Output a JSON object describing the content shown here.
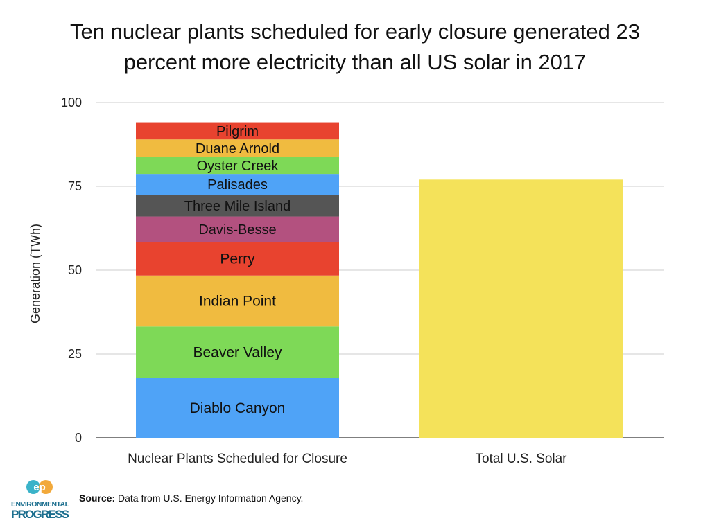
{
  "title": {
    "line1": "Ten nuclear plants scheduled for early closure generated 23",
    "line2": "percent more electricity than all US solar in 2017"
  },
  "chart_data": {
    "type": "bar",
    "ylabel": "Generation (TWh)",
    "ylim": [
      0,
      100
    ],
    "yticks": [
      0,
      25,
      50,
      75,
      100
    ],
    "grid": true,
    "categories": [
      "Nuclear Plants Scheduled for Closure",
      "Total U.S. Solar"
    ],
    "stacked_segments": [
      {
        "name": "Diablo Canyon",
        "value": 17.8,
        "color": "#4fa3f7"
      },
      {
        "name": "Beaver Valley",
        "value": 15.4,
        "color": "#7ed957"
      },
      {
        "name": "Indian Point",
        "value": 15.2,
        "color": "#f0bb40"
      },
      {
        "name": "Perry",
        "value": 10.0,
        "color": "#e8432f"
      },
      {
        "name": "Davis-Besse",
        "value": 7.6,
        "color": "#b3517f"
      },
      {
        "name": "Three Mile Island",
        "value": 6.5,
        "color": "#555555"
      },
      {
        "name": "Palisades",
        "value": 6.2,
        "color": "#4fa3f7"
      },
      {
        "name": "Oyster Creek",
        "value": 5.1,
        "color": "#7ed957"
      },
      {
        "name": "Duane Arnold",
        "value": 5.2,
        "color": "#f0bb40"
      },
      {
        "name": "Pilgrim",
        "value": 5.1,
        "color": "#e8432f"
      }
    ],
    "solar_value": 77.0,
    "solar_color": "#f4e25a"
  },
  "source": {
    "label": "Source:",
    "text": "Data from U.S. Energy Information Agency."
  },
  "logo": {
    "mark": "ep",
    "line1": "ENVIRONMENTAL",
    "line2": "PROGRESS",
    "colors": {
      "teal": "#3bb3c9",
      "orange": "#f2a93b",
      "navy": "#1b6e8e"
    }
  }
}
